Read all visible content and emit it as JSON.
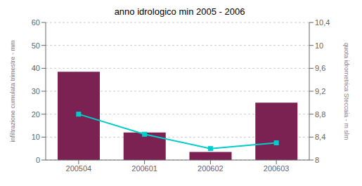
{
  "chart_data": {
    "type": "bar",
    "title": "anno idrologico min 2005 - 2006",
    "categories": [
      "200504",
      "200601",
      "200602",
      "200603"
    ],
    "series": [
      {
        "type": "bar",
        "color": "#7b2252",
        "values": [
          38.5,
          12.0,
          3.5,
          25.0
        ]
      },
      {
        "type": "line",
        "axis": "y2",
        "color": "#00cccc",
        "marker": "square",
        "values": [
          8.8,
          8.45,
          8.2,
          8.3
        ]
      }
    ],
    "ylabel": "infiltrazione cumulata trimestre - mm",
    "y2label": "quota idrometrica Steccaia - m slm",
    "ylim": [
      0,
      60
    ],
    "yticks": [
      0,
      10,
      20,
      30,
      40,
      50,
      60
    ],
    "y2lim": [
      8.0,
      10.4
    ],
    "y2ticks": [
      8,
      {
        "value": 8.4,
        "label": "8,4"
      },
      {
        "value": 8.8,
        "label": "8,8"
      },
      {
        "value": 9.2,
        "label": "9,2"
      },
      {
        "value": 9.6,
        "label": "9,6"
      },
      10,
      {
        "value": 10.4,
        "label": "10,4"
      }
    ],
    "grid": true
  }
}
